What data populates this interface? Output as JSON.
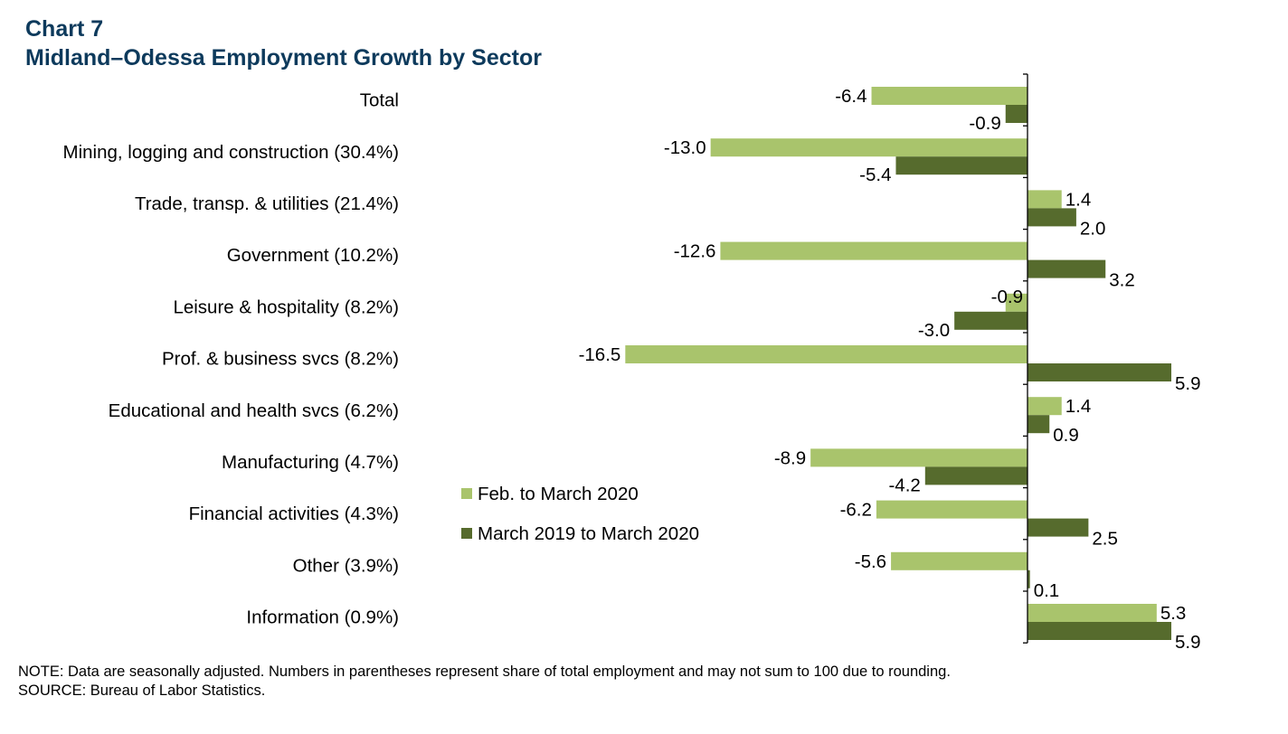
{
  "title_line1": "Chart 7",
  "title_line2": "Midland–Odessa Employment Growth by Sector",
  "note": "NOTE: Data are seasonally adjusted. Numbers in parentheses represent share of total employment and may not sum to 100 due to rounding.",
  "source": "SOURCE: Bureau of Labor Statistics.",
  "colors": {
    "series1": "#a9c46c",
    "series2": "#566b2d",
    "title": "#0d3a5c",
    "axis": "#000000"
  },
  "chart_data": {
    "type": "bar",
    "orientation": "horizontal",
    "categories": [
      "Total",
      "Mining, logging and construction (30.4%)",
      "Trade, transp. & utilities (21.4%)",
      "Government  (10.2%)",
      "Leisure & hospitality  (8.2%)",
      "Prof. & business svcs (8.2%)",
      "Educational and health svcs (6.2%)",
      "Manufacturing (4.7%)",
      "Financial activities (4.3%)",
      "Other  (3.9%)",
      "Information (0.9%)"
    ],
    "series": [
      {
        "name": "Feb. to March 2020",
        "values": [
          -6.4,
          -13.0,
          1.4,
          -12.6,
          -0.9,
          -16.5,
          1.4,
          -8.9,
          -6.2,
          -5.6,
          5.3
        ],
        "labels": [
          "-6.4",
          "-13.0",
          "1.4",
          "-12.6",
          "-0.9",
          "-16.5",
          "1.4",
          "-8.9",
          "-6.2",
          "-5.6",
          "5.3"
        ]
      },
      {
        "name": "March 2019 to March 2020",
        "values": [
          -0.9,
          -5.4,
          2.0,
          3.2,
          -3.0,
          5.9,
          0.9,
          -4.2,
          2.5,
          0.1,
          5.9
        ],
        "labels": [
          "-0.9",
          "-5.4",
          "2.0",
          "3.2",
          "-3.0",
          "5.9",
          "0.9",
          "-4.2",
          "2.5",
          "0.1",
          "5.9"
        ]
      }
    ],
    "legend_position": "center-right",
    "grid": false,
    "xlim": [
      -16.5,
      8.0
    ]
  }
}
